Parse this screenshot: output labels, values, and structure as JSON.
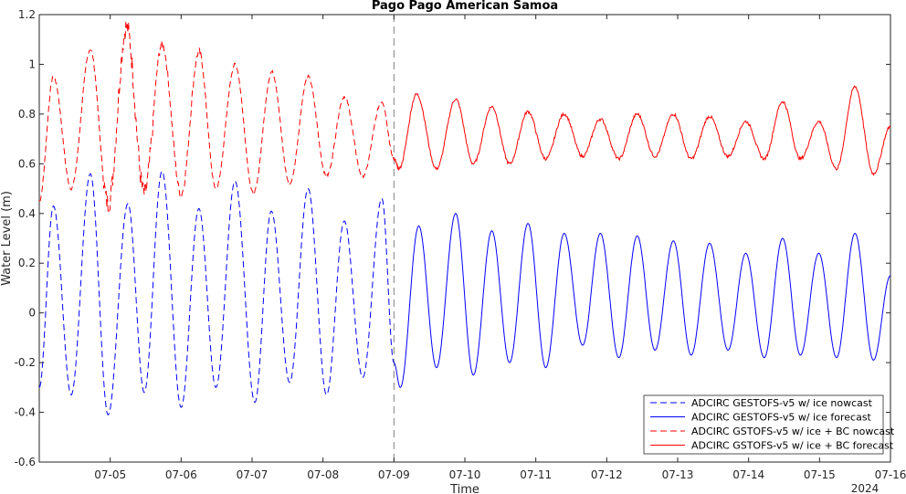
{
  "chart_data": {
    "type": "line",
    "title": "Pago Pago American Samoa",
    "xlabel": "Time",
    "ylabel": "Water Level (m)",
    "year_label": "2024",
    "xlim": [
      4.0,
      16.0
    ],
    "ylim": [
      -0.6,
      1.2
    ],
    "x_unit": "day of July 2024",
    "xticks": [
      5,
      6,
      7,
      8,
      9,
      10,
      11,
      12,
      13,
      14,
      15,
      16
    ],
    "xtick_labels": [
      "07-05",
      "07-06",
      "07-07",
      "07-08",
      "07-09",
      "07-10",
      "07-11",
      "07-12",
      "07-13",
      "07-14",
      "07-15",
      "07-16"
    ],
    "yticks": [
      -0.6,
      -0.4,
      -0.2,
      0,
      0.2,
      0.4,
      0.6,
      0.8,
      1,
      1.2
    ],
    "ytick_labels": [
      "-0.6",
      "-0.4",
      "-0.2",
      "0",
      "0.2",
      "0.4",
      "0.6",
      "0.8",
      "1",
      "1.2"
    ],
    "nowcast_forecast_divider": 9.0,
    "legend_position": "bottom-right",
    "grid": false,
    "series": [
      {
        "name": "ADCIRC GESTOFS-v5 w/ ice nowcast",
        "color": "#0000ff",
        "dash": true,
        "x": [
          4.0,
          4.2,
          4.45,
          4.72,
          4.97,
          5.25,
          5.48,
          5.73,
          6.0,
          6.25,
          6.49,
          6.76,
          7.04,
          7.27,
          7.53,
          7.79,
          8.05,
          8.3,
          8.56,
          8.83,
          9.0
        ],
        "y": [
          -0.3,
          0.43,
          -0.33,
          0.56,
          -0.41,
          0.44,
          -0.32,
          0.57,
          -0.38,
          0.42,
          -0.3,
          0.53,
          -0.36,
          0.41,
          -0.28,
          0.5,
          -0.33,
          0.37,
          -0.26,
          0.46,
          -0.2
        ]
      },
      {
        "name": "ADCIRC GESTOFS-v5 w/ ice forecast",
        "color": "#0000ff",
        "dash": false,
        "x": [
          9.0,
          9.09,
          9.35,
          9.6,
          9.87,
          10.12,
          10.38,
          10.63,
          10.89,
          11.14,
          11.4,
          11.66,
          11.91,
          12.17,
          12.43,
          12.68,
          12.94,
          13.19,
          13.45,
          13.71,
          13.96,
          14.22,
          14.48,
          14.73,
          14.99,
          15.24,
          15.5,
          15.76,
          16.0
        ],
        "y": [
          -0.2,
          -0.3,
          0.35,
          -0.22,
          0.4,
          -0.25,
          0.33,
          -0.2,
          0.36,
          -0.22,
          0.32,
          -0.13,
          0.32,
          -0.18,
          0.31,
          -0.15,
          0.29,
          -0.17,
          0.28,
          -0.15,
          0.24,
          -0.18,
          0.3,
          -0.17,
          0.24,
          -0.18,
          0.32,
          -0.19,
          0.15
        ]
      },
      {
        "name": "ADCIRC GSTOFS-v5 w/ ice + BC nowcast",
        "color": "#ff0000",
        "dash": true,
        "x": [
          4.0,
          4.2,
          4.45,
          4.72,
          4.97,
          5.23,
          5.48,
          5.73,
          6.0,
          6.25,
          6.49,
          6.76,
          7.02,
          7.28,
          7.53,
          7.79,
          8.05,
          8.3,
          8.56,
          8.83,
          9.0
        ],
        "y": [
          0.45,
          0.95,
          0.5,
          1.06,
          0.44,
          1.15,
          0.48,
          1.08,
          0.48,
          1.05,
          0.5,
          1.0,
          0.48,
          0.97,
          0.52,
          0.95,
          0.55,
          0.87,
          0.55,
          0.85,
          0.62
        ]
      },
      {
        "name": "ADCIRC GSTOFS-v5 w/ ice + BC forecast",
        "color": "#ff0000",
        "dash": false,
        "x": [
          9.0,
          9.07,
          9.32,
          9.6,
          9.87,
          10.12,
          10.38,
          10.63,
          10.89,
          11.14,
          11.4,
          11.66,
          11.91,
          12.17,
          12.43,
          12.68,
          12.94,
          13.19,
          13.45,
          13.71,
          13.96,
          14.22,
          14.48,
          14.73,
          14.99,
          15.24,
          15.5,
          15.76,
          16.0
        ],
        "y": [
          0.62,
          0.58,
          0.88,
          0.58,
          0.86,
          0.6,
          0.83,
          0.6,
          0.81,
          0.62,
          0.8,
          0.63,
          0.78,
          0.62,
          0.8,
          0.63,
          0.8,
          0.62,
          0.79,
          0.63,
          0.77,
          0.62,
          0.85,
          0.62,
          0.77,
          0.58,
          0.91,
          0.56,
          0.75
        ]
      }
    ]
  }
}
